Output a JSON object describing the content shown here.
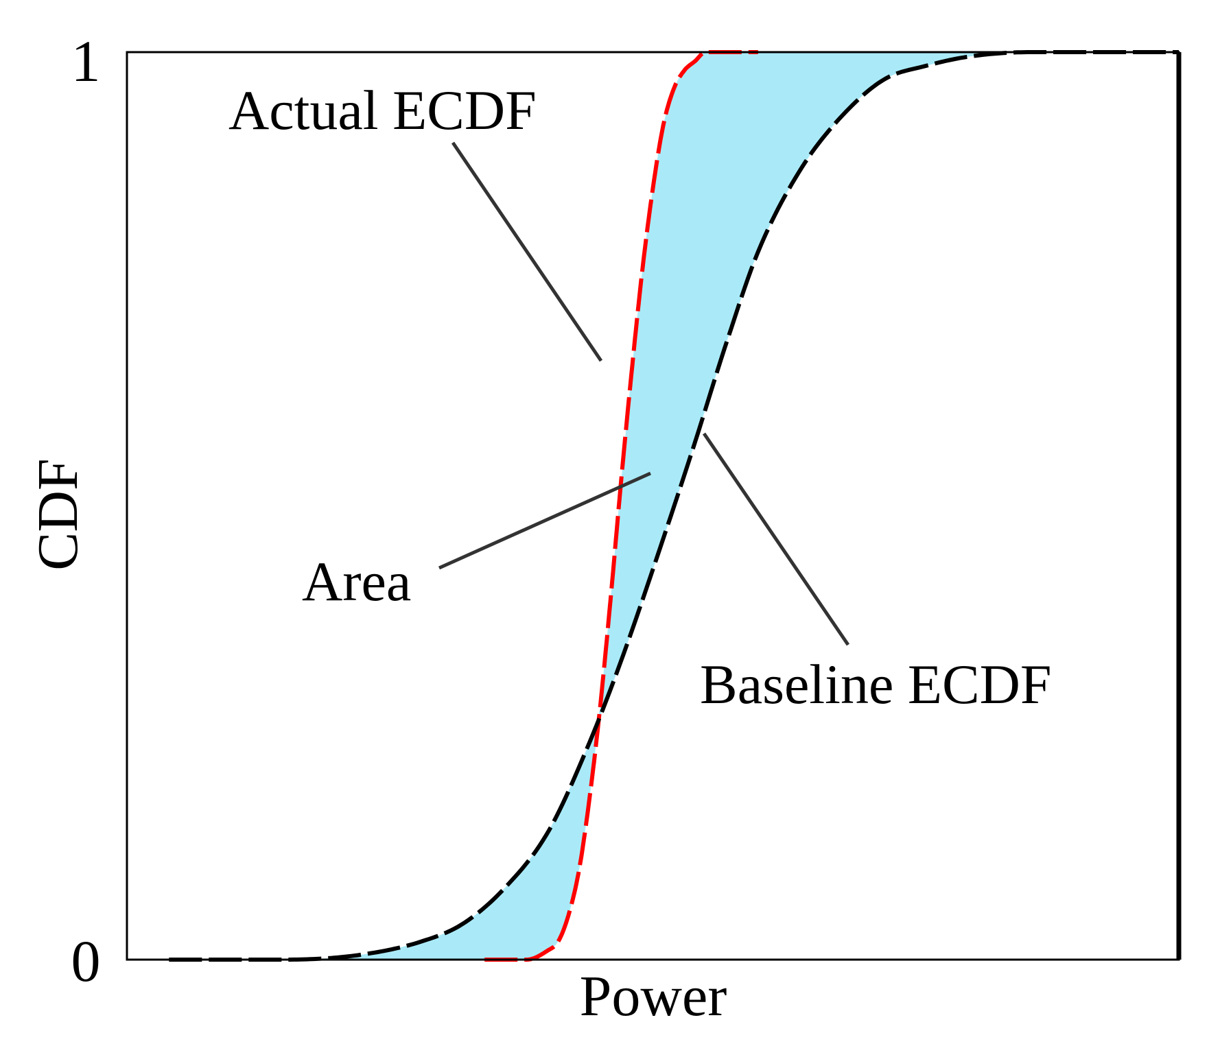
{
  "chart_data": {
    "type": "line",
    "title": "",
    "xlabel": "Power",
    "ylabel": "CDF",
    "ylim": [
      0,
      1
    ],
    "yticks": [
      "0",
      "1"
    ],
    "grid": false,
    "legend": "none",
    "series": [
      {
        "id": "actual",
        "color": "#ff0000",
        "dash": true,
        "x": [
          0.34,
          0.38,
          0.4,
          0.41,
          0.42,
          0.43,
          0.44,
          0.45,
          0.46,
          0.47,
          0.48,
          0.49,
          0.5,
          0.51,
          0.52,
          0.53,
          0.54,
          0.55,
          0.56,
          0.58,
          0.6
        ],
        "y": [
          0.0,
          0.0,
          0.01,
          0.02,
          0.05,
          0.1,
          0.18,
          0.28,
          0.4,
          0.53,
          0.65,
          0.76,
          0.85,
          0.92,
          0.96,
          0.98,
          0.99,
          1.0,
          1.0,
          1.0,
          1.0
        ]
      },
      {
        "id": "baseline",
        "color": "#000000",
        "dash": true,
        "x": [
          0.04,
          0.15,
          0.22,
          0.28,
          0.32,
          0.36,
          0.4,
          0.44,
          0.47,
          0.5,
          0.54,
          0.57,
          0.6,
          0.64,
          0.68,
          0.72,
          0.76,
          0.8,
          0.86,
          0.92,
          1.0
        ],
        "y": [
          0.0,
          0.0,
          0.005,
          0.02,
          0.04,
          0.08,
          0.14,
          0.24,
          0.33,
          0.43,
          0.57,
          0.68,
          0.78,
          0.87,
          0.93,
          0.97,
          0.985,
          0.995,
          1.0,
          1.0,
          1.0
        ]
      }
    ],
    "annotations": [
      {
        "id": "actual",
        "text": "Actual ECDF"
      },
      {
        "id": "area",
        "text": "Area"
      },
      {
        "id": "baseline",
        "text": "Baseline ECDF"
      }
    ],
    "fill_color": "#aaeaf8"
  }
}
